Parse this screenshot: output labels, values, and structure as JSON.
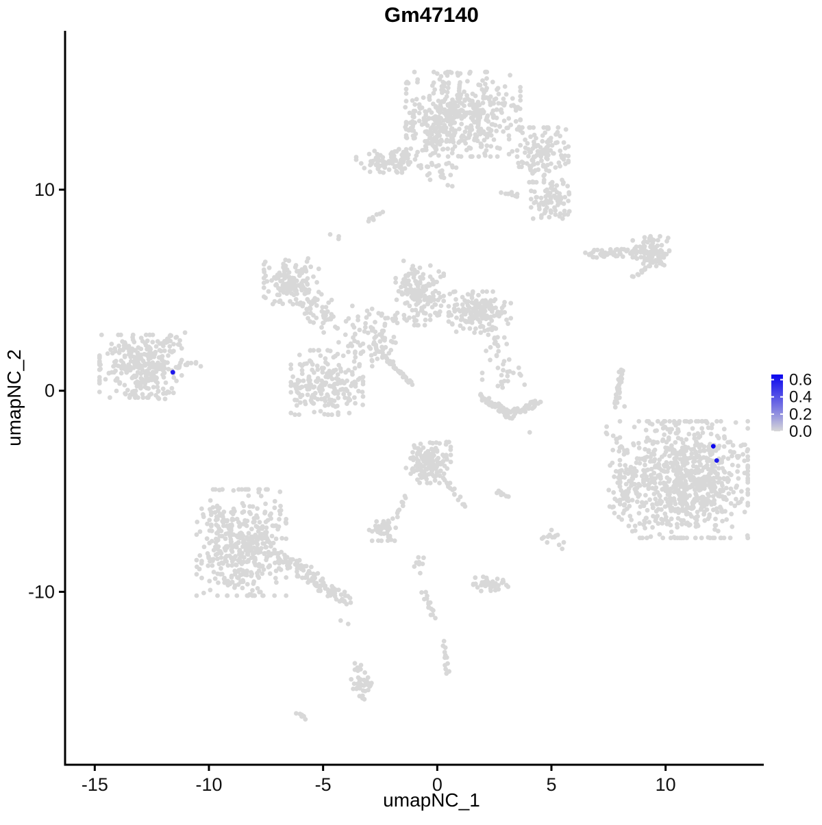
{
  "chart_data": {
    "type": "scatter",
    "title": "Gm47140",
    "xlabel": "umapNC_1",
    "ylabel": "umapNC_2",
    "xlim": [
      -16.3,
      14.3
    ],
    "ylim": [
      -18.6,
      17.9
    ],
    "xticks": [
      -15,
      -10,
      -5,
      0,
      5,
      10
    ],
    "yticks": [
      -10,
      0,
      10
    ],
    "grid": false,
    "point_colors": {
      "low": "#d8d8d8",
      "high": "#0b06ee"
    },
    "legend": {
      "position": "right",
      "ticks": [
        0.6,
        0.4,
        0.2,
        0.0
      ],
      "min": 0.0,
      "max": 0.66
    },
    "clusters": {
      "blobs": [
        [
          1.14,
          13.75,
          1.25,
          1.05,
          420
        ],
        [
          -0.3,
          12.9,
          0.55,
          0.6,
          90
        ],
        [
          4.62,
          11.73,
          0.56,
          0.68,
          130
        ],
        [
          5.01,
          9.52,
          0.45,
          0.48,
          80
        ],
        [
          -2.13,
          11.43,
          0.71,
          0.29,
          85
        ],
        [
          0.21,
          10.71,
          0.32,
          0.27,
          12
        ],
        [
          -4.5,
          7.79,
          0.15,
          0.12,
          3
        ],
        [
          9.36,
          6.94,
          0.4,
          0.37,
          95
        ],
        [
          -6.39,
          5.44,
          0.6,
          0.57,
          150
        ],
        [
          -5.1,
          3.88,
          0.4,
          0.5,
          45
        ],
        [
          -4.83,
          0.41,
          0.79,
          0.8,
          210
        ],
        [
          -2.94,
          2.72,
          0.8,
          0.75,
          90
        ],
        [
          -0.78,
          4.86,
          0.53,
          0.8,
          150
        ],
        [
          1.86,
          3.91,
          0.68,
          0.51,
          170
        ],
        [
          2.52,
          2.21,
          0.3,
          0.55,
          18
        ],
        [
          2.97,
          0.75,
          0.5,
          0.4,
          20
        ],
        [
          10.8,
          -4.42,
          1.4,
          1.45,
          800
        ],
        [
          8.31,
          -4.59,
          0.4,
          1.2,
          60
        ],
        [
          7.56,
          -2.55,
          0.3,
          0.5,
          8
        ],
        [
          -8.58,
          -7.55,
          0.98,
          1.32,
          430
        ],
        [
          -0.39,
          -3.57,
          0.49,
          0.51,
          150
        ],
        [
          -2.4,
          -6.9,
          0.29,
          0.28,
          40
        ],
        [
          5.1,
          -7.35,
          0.22,
          0.27,
          12
        ],
        [
          2.34,
          -9.52,
          0.38,
          0.23,
          40
        ],
        [
          -0.81,
          -8.57,
          0.12,
          0.25,
          10
        ],
        [
          -3.33,
          -14.52,
          0.23,
          0.49,
          40
        ],
        [
          -12.99,
          1.22,
          0.9,
          0.78,
          300
        ],
        [
          -11.55,
          2.45,
          0.3,
          0.22,
          16
        ],
        [
          -11.94,
          -0.24,
          0.22,
          0.18,
          10
        ]
      ],
      "lines": [
        [
          2.91,
          9.86,
          3.6,
          9.76,
          8,
          0.12
        ],
        [
          -0.78,
          11.29,
          0.9,
          11.16,
          13,
          0.15
        ],
        [
          -3.06,
          8.4,
          -2.46,
          8.84,
          7,
          0.08
        ],
        [
          6.57,
          6.8,
          8.61,
          6.87,
          48,
          0.2
        ],
        [
          8.61,
          5.68,
          9.27,
          6.19,
          10,
          0.1
        ],
        [
          -2.58,
          1.97,
          -1.14,
          0.34,
          35,
          0.08
        ],
        [
          1.95,
          -0.27,
          3.21,
          -1.22,
          45,
          0.16
        ],
        [
          3.21,
          -1.22,
          4.47,
          -0.58,
          40,
          0.16
        ],
        [
          8.07,
          1.02,
          7.86,
          -0.61,
          28,
          0.1
        ],
        [
          -6.9,
          -8.23,
          -3.99,
          -10.48,
          110,
          0.32
        ],
        [
          0.3,
          -4.42,
          1.2,
          -5.78,
          14,
          0.12
        ],
        [
          -1.38,
          -5.17,
          -1.74,
          -6.29,
          9,
          0.1
        ],
        [
          2.64,
          -5.0,
          3.06,
          -5.2,
          7,
          0.1
        ],
        [
          -0.6,
          -10.03,
          -0.15,
          -11.26,
          16,
          0.1
        ],
        [
          0.24,
          -12.52,
          0.48,
          -14.05,
          12,
          0.1
        ],
        [
          -6.15,
          -15.99,
          -5.73,
          -16.29,
          6,
          0.06
        ],
        [
          -11.4,
          1.19,
          -10.38,
          1.33,
          10,
          0.12
        ]
      ],
      "singles": [
        [
          4.05,
          -2.07
        ],
        [
          7.8,
          -0.82
        ],
        [
          8.2,
          -0.78
        ],
        [
          -4.23,
          -11.43
        ],
        [
          -3.9,
          -11.6
        ],
        [
          -1.95,
          -6.36
        ],
        [
          4.59,
          -7.35
        ],
        [
          -2.79,
          8.5
        ]
      ]
    },
    "highlights": [
      {
        "x": -11.58,
        "y": 0.92,
        "value": 0.6
      },
      {
        "x": 12.09,
        "y": -2.76,
        "value": 0.65
      },
      {
        "x": 12.24,
        "y": -3.47,
        "value": 0.6
      }
    ]
  }
}
